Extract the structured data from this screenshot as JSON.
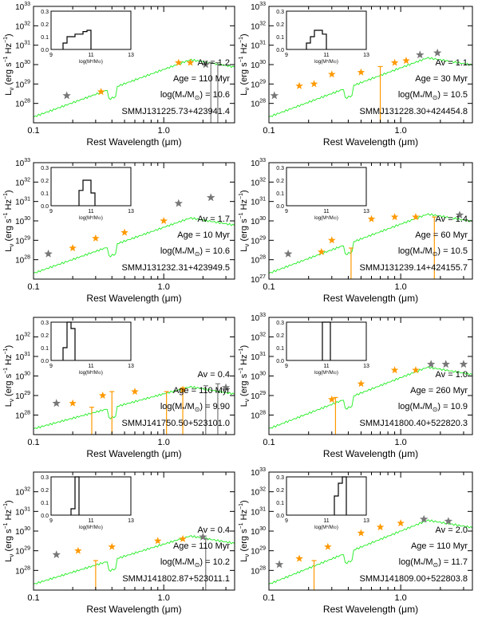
{
  "figure": {
    "xlabel_text": "Rest Wavelength (",
    "xlabel_unit": "μm",
    "xlabel_close": ")",
    "ylabel_L": "L",
    "ylabel_nu": "ν",
    "ylabel_rest": " (erg s",
    "ylabel_exp": "−1",
    "ylabel_hz": " Hz",
    "ylabel_exp2": "−1",
    "ylabel_close": ")",
    "inset_xlabel": "log(M",
    "inset_xlabel_sub": "*",
    "inset_xlabel_rest": "/M",
    "inset_xlabel_sun": "⊙",
    "inset_xlabel_close": ")",
    "colors": {
      "model": "#33ee33",
      "phot": "#ff9900",
      "phot_unused": "#777777",
      "axis": "#000000"
    }
  },
  "chart_data": [
    {
      "type": "scatter",
      "source": "SMMJ131225.73+423941.4",
      "av_label": "Av = 1.2",
      "age_label": "Age = 110 Myr",
      "mass_label_pre": "log(M",
      "mass_label_post": "/M",
      "mass_value": ") = 10.6",
      "xlim": [
        0.1,
        3.5
      ],
      "xscale": "log",
      "ylim_exp": [
        27,
        33
      ],
      "yticks": [
        "10",
        "10",
        "10",
        "10",
        "10",
        "10"
      ],
      "ytick_exps": [
        "28",
        "29",
        "30",
        "31",
        "32",
        "33"
      ],
      "xticks": [
        "0.1",
        "1.0"
      ],
      "phot": [
        [
          0.33,
          28.6
        ],
        [
          1.3,
          30.1
        ],
        [
          1.6,
          30.1
        ]
      ],
      "phot_unused": [
        [
          0.18,
          28.4
        ],
        [
          2.1,
          30.0
        ]
      ],
      "errorbars": [
        [
          2.3,
          30.1
        ],
        [
          2.6,
          30.1
        ]
      ],
      "inset_hist": {
        "bins": [
          9.6,
          9.8,
          10.0,
          10.2,
          10.4,
          10.6,
          10.8
        ],
        "heights": [
          0.05,
          0.1,
          0.1,
          0.12,
          0.12,
          0.14,
          0.15
        ],
        "ylim": [
          0,
          0.3
        ],
        "xlim": [
          9,
          13
        ]
      }
    },
    {
      "type": "scatter",
      "source": "SMMJ131228.30+424454.8",
      "av_label": "Av = 1.1",
      "age_label": "Age = 30 Myr",
      "mass_label_pre": "log(M",
      "mass_label_post": "/M",
      "mass_value": ") = 10.5",
      "xlim": [
        0.1,
        3.5
      ],
      "xscale": "log",
      "ylim_exp": [
        27,
        33
      ],
      "yticks": [
        "10",
        "10",
        "10",
        "10",
        "10",
        "10"
      ],
      "ytick_exps": [
        "28",
        "29",
        "30",
        "31",
        "32",
        "33"
      ],
      "xticks": [
        "0.1",
        "1.0"
      ],
      "phot": [
        [
          0.17,
          28.9
        ],
        [
          0.22,
          29.0
        ],
        [
          0.3,
          29.5
        ],
        [
          0.5,
          29.6
        ],
        [
          0.9,
          30.1
        ],
        [
          1.1,
          30.2
        ]
      ],
      "phot_unused": [
        [
          0.11,
          28.4
        ],
        [
          1.4,
          30.5
        ],
        [
          1.9,
          30.6
        ]
      ],
      "errorbars": [
        [
          0.7,
          29.9
        ]
      ],
      "inset_hist": {
        "bins": [
          10.0,
          10.2,
          10.4,
          10.6,
          10.8
        ],
        "heights": [
          0.05,
          0.1,
          0.15,
          0.15,
          0.12
        ],
        "ylim": [
          0,
          0.3
        ],
        "xlim": [
          9,
          13
        ]
      }
    },
    {
      "type": "scatter",
      "source": "SMMJ131232.31+423949.5",
      "av_label": "Av = 1.7",
      "age_label": "Age = 10 Myr",
      "mass_label_pre": "log(M",
      "mass_label_post": "/M",
      "mass_value": ") = 10.6",
      "xlim": [
        0.1,
        3.5
      ],
      "xscale": "log",
      "ylim_exp": [
        27,
        33
      ],
      "yticks": [
        "10",
        "10",
        "10",
        "10",
        "10",
        "10"
      ],
      "ytick_exps": [
        "28",
        "29",
        "30",
        "31",
        "32",
        "33"
      ],
      "xticks": [
        "0.1",
        "1.0"
      ],
      "phot": [
        [
          0.2,
          28.6
        ],
        [
          0.3,
          29.1
        ],
        [
          0.5,
          29.4
        ],
        [
          1.0,
          30.0
        ]
      ],
      "phot_unused": [
        [
          0.13,
          28.3
        ],
        [
          1.3,
          30.9
        ],
        [
          2.3,
          31.2
        ]
      ],
      "errorbars": [],
      "inset_hist": {
        "bins": [
          10.4,
          10.6,
          10.8,
          11.0
        ],
        "heights": [
          0.12,
          0.2,
          0.2,
          0.1
        ],
        "ylim": [
          0,
          0.3
        ],
        "xlim": [
          9,
          13
        ]
      }
    },
    {
      "type": "scatter",
      "source": "SMMJ131239.14+424155.7",
      "av_label": "Av = 1.4",
      "age_label": "Age = 60 Myr",
      "mass_label_pre": "log(M",
      "mass_label_post": "/M",
      "mass_value": ") = 10.5",
      "xlim": [
        0.1,
        3.5
      ],
      "xscale": "log",
      "ylim_exp": [
        27,
        33
      ],
      "yticks": [
        "10",
        "10",
        "10",
        "10",
        "10",
        "10",
        "10"
      ],
      "ytick_exps": [
        "27",
        "28",
        "29",
        "30",
        "31",
        "32",
        "33"
      ],
      "xticks": [
        "0.1",
        "1.0"
      ],
      "phot": [
        [
          0.25,
          28.4
        ],
        [
          0.3,
          29.0
        ],
        [
          0.6,
          30.1
        ],
        [
          0.9,
          30.2
        ],
        [
          1.3,
          30.2
        ]
      ],
      "phot_unused": [
        [
          0.14,
          28.3
        ],
        [
          2.8,
          30.3
        ]
      ],
      "errorbars": [
        [
          0.42,
          28.6
        ],
        [
          1.8,
          30.2
        ]
      ],
      "inset_hist": {
        "bins": [],
        "heights": [],
        "ylim": [
          0,
          0.3
        ],
        "xlim": [
          9,
          13
        ]
      }
    },
    {
      "type": "scatter",
      "source": "SMMJ141750.50+523101.0",
      "av_label": "Av = 0.4",
      "age_label": "Age = 110 Myr",
      "mass_label_pre": "log(M",
      "mass_label_post": "/M",
      "mass_value": ") = 9.90",
      "xlim": [
        0.1,
        3.5
      ],
      "xscale": "log",
      "ylim_exp": [
        27,
        33
      ],
      "yticks": [
        "10",
        "10",
        "10",
        "10",
        "10"
      ],
      "ytick_exps": [
        "28",
        "29",
        "30",
        "31",
        "32"
      ],
      "xticks": [
        "0.1",
        "1.0"
      ],
      "phot": [
        [
          0.2,
          28.6
        ],
        [
          0.34,
          29.0
        ],
        [
          0.6,
          29.2
        ],
        [
          1.4,
          29.3
        ]
      ],
      "phot_unused": [
        [
          0.15,
          28.6
        ],
        [
          3.0,
          29.4
        ]
      ],
      "errorbars": [
        [
          0.28,
          28.4
        ],
        [
          0.4,
          29.2
        ],
        [
          1.05,
          29.2
        ],
        [
          1.4,
          29.4
        ],
        [
          2.1,
          29.5
        ],
        [
          2.6,
          29.6
        ]
      ],
      "inset_hist": {
        "bins": [
          9.6,
          9.8,
          10.0
        ],
        "heights": [
          0.1,
          0.3,
          0.25
        ],
        "ylim": [
          0,
          0.3
        ],
        "xlim": [
          9,
          13
        ]
      }
    },
    {
      "type": "scatter",
      "source": "SMMJ141800.40+522820.3",
      "av_label": "Av = 1.0",
      "age_label": "Age = 260 Myr",
      "mass_label_pre": "log(M",
      "mass_label_post": "/M",
      "mass_value": ") = 10.9",
      "xlim": [
        0.1,
        3.5
      ],
      "xscale": "log",
      "ylim_exp": [
        27,
        33
      ],
      "yticks": [
        "10",
        "10",
        "10",
        "10",
        "10",
        "10"
      ],
      "ytick_exps": [
        "28",
        "29",
        "30",
        "31",
        "32",
        "33"
      ],
      "xticks": [
        "0.1",
        "1.0"
      ],
      "phot": [
        [
          0.3,
          28.8
        ],
        [
          0.5,
          29.6
        ],
        [
          0.9,
          30.3
        ],
        [
          1.3,
          30.3
        ]
      ],
      "phot_unused": [
        [
          1.7,
          30.6
        ],
        [
          2.2,
          30.6
        ],
        [
          3.0,
          30.6
        ]
      ],
      "errorbars": [
        [
          0.32,
          28.9
        ]
      ],
      "inset_hist": {
        "bins": [
          10.8,
          11.0
        ],
        "heights": [
          0.3,
          0.3
        ],
        "ylim": [
          0,
          0.3
        ],
        "xlim": [
          9,
          13
        ]
      }
    },
    {
      "type": "scatter",
      "source": "SMMJ141802.87+523011.1",
      "av_label": "Av = 0.4",
      "age_label": "Age = 110 Myr",
      "mass_label_pre": "log(M",
      "mass_label_post": "/M",
      "mass_value": ") = 10.2",
      "xlim": [
        0.1,
        3.5
      ],
      "xscale": "log",
      "ylim_exp": [
        27,
        33
      ],
      "yticks": [
        "10",
        "10",
        "10",
        "10",
        "10"
      ],
      "ytick_exps": [
        "28",
        "29",
        "30",
        "31",
        "32"
      ],
      "xticks": [
        "0.1",
        "1.0"
      ],
      "phot": [
        [
          0.22,
          29.0
        ],
        [
          0.4,
          29.2
        ],
        [
          0.9,
          29.5
        ],
        [
          1.4,
          29.6
        ]
      ],
      "phot_unused": [
        [
          0.15,
          28.8
        ],
        [
          2.0,
          29.7
        ]
      ],
      "errorbars": [
        [
          0.3,
          28.5
        ],
        [
          2.1,
          29.6
        ]
      ],
      "inset_hist": {
        "bins": [
          10.0,
          10.2
        ],
        "heights": [
          0.05,
          0.3
        ],
        "ylim": [
          0,
          0.3
        ],
        "xlim": [
          9,
          13
        ]
      }
    },
    {
      "type": "scatter",
      "source": "SMMJ141809.00+522803.8",
      "av_label": "Av = 2.0",
      "age_label": "Age = 110 Myr",
      "mass_label_pre": "log(M",
      "mass_label_post": "/M",
      "mass_value": ") = 11.7",
      "xlim": [
        0.1,
        3.5
      ],
      "xscale": "log",
      "ylim_exp": [
        27,
        33
      ],
      "yticks": [
        "10",
        "10",
        "10",
        "10",
        "10",
        "10"
      ],
      "ytick_exps": [
        "28",
        "29",
        "30",
        "31",
        "32",
        "33"
      ],
      "xticks": [
        "0.1",
        "1.0"
      ],
      "phot": [
        [
          0.17,
          28.6
        ],
        [
          0.28,
          29.2
        ],
        [
          0.5,
          29.9
        ],
        [
          0.7,
          30.2
        ],
        [
          1.0,
          30.4
        ]
      ],
      "phot_unused": [
        [
          0.12,
          28.3
        ],
        [
          1.5,
          30.6
        ],
        [
          2.3,
          30.5
        ]
      ],
      "errorbars": [
        [
          0.22,
          28.5
        ]
      ],
      "inset_hist": {
        "bins": [
          11.4,
          11.6,
          11.8
        ],
        "heights": [
          0.15,
          0.25,
          0.3
        ],
        "ylim": [
          0,
          0.3
        ],
        "xlim": [
          9,
          13
        ]
      }
    }
  ]
}
